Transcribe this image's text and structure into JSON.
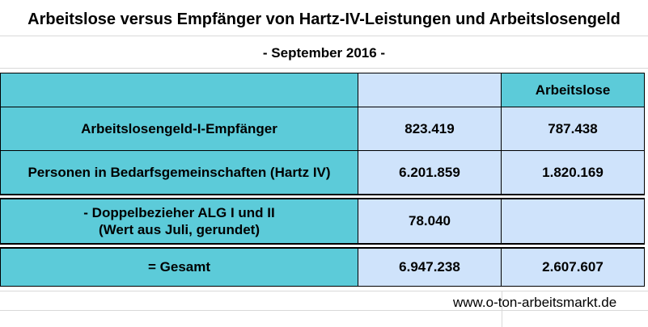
{
  "title": "Arbeitslose versus Empfänger von Hartz-IV-Leistungen und Arbeitslosengeld",
  "subtitle": "- September 2016 -",
  "table": {
    "header": {
      "col1": "",
      "col2": "",
      "col3": "Arbeitslose"
    },
    "rows": [
      {
        "label": "Arbeitslosengeld-I-Empfänger",
        "value1": "823.419",
        "value2": "787.438"
      },
      {
        "label": "Personen in Bedarfsgemeinschaften (Hartz IV)",
        "value1": "6.201.859",
        "value2": "1.820.169"
      },
      {
        "label_line1": "- Doppelbezieher ALG I und II",
        "label_line2": "(Wert aus Juli, gerundet)",
        "value1": "78.040",
        "value2": ""
      },
      {
        "label": "= Gesamt",
        "value1": "6.947.238",
        "value2": "2.607.607"
      }
    ]
  },
  "footer": "www.o-ton-arbeitsmarkt.de",
  "colors": {
    "teal": "#5ccbd9",
    "pale_blue": "#cfe3fb",
    "grid": "#d9d9d9"
  }
}
